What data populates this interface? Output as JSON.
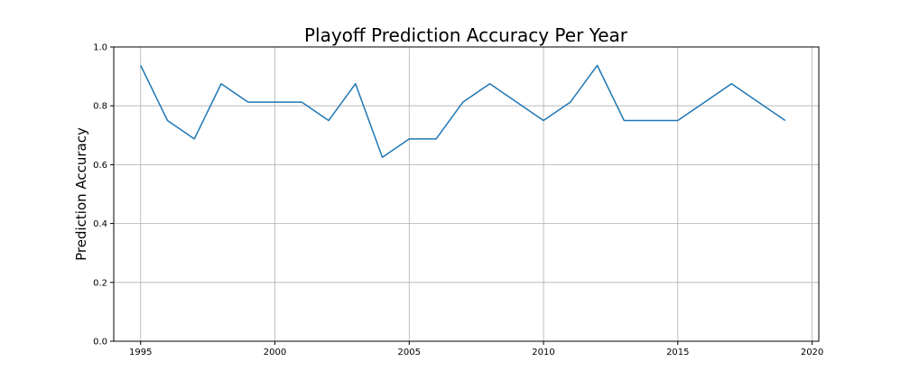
{
  "chart_data": {
    "type": "line",
    "title": "Playoff Prediction Accuracy Per Year",
    "xlabel": "",
    "ylabel": "Prediction Accuracy",
    "xlim": [
      1994,
      2020.25
    ],
    "ylim": [
      0.0,
      1.0
    ],
    "xticks": [
      1995,
      2000,
      2005,
      2010,
      2015,
      2020
    ],
    "yticks": [
      0.0,
      0.2,
      0.4,
      0.6,
      0.8,
      1.0
    ],
    "grid": true,
    "color": "#1f77b4",
    "x": [
      1995,
      1996,
      1997,
      1998,
      1999,
      2000,
      2001,
      2002,
      2003,
      2004,
      2005,
      2006,
      2007,
      2008,
      2009,
      2010,
      2011,
      2012,
      2013,
      2014,
      2015,
      2016,
      2017,
      2018,
      2019
    ],
    "values": [
      0.9375,
      0.75,
      0.6875,
      0.875,
      0.8125,
      0.8125,
      0.8125,
      0.75,
      0.875,
      0.625,
      0.6875,
      0.6875,
      0.8125,
      0.875,
      0.8125,
      0.75,
      0.8125,
      0.9375,
      0.75,
      0.75,
      0.75,
      0.8125,
      0.875,
      0.8125,
      0.75
    ]
  }
}
